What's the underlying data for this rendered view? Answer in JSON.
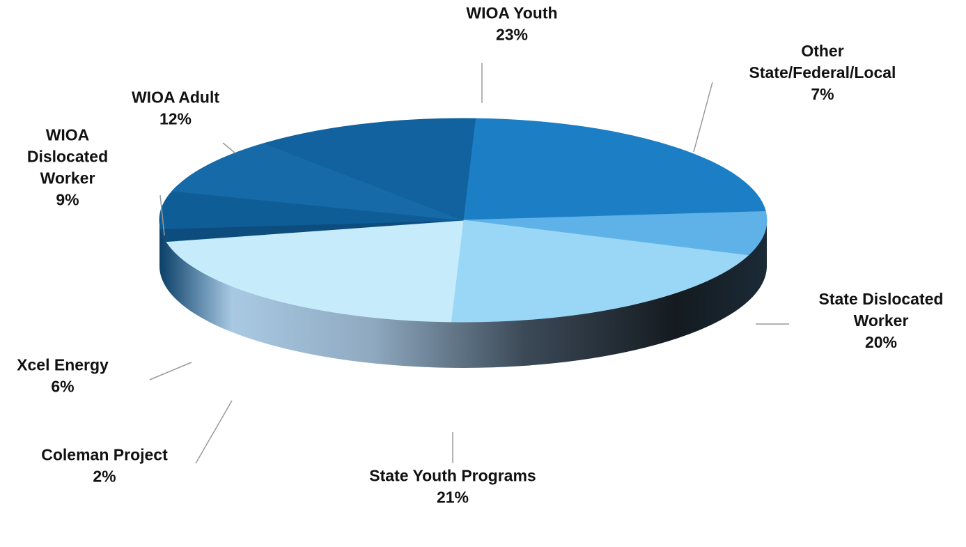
{
  "chart_data": {
    "type": "pie",
    "style": "3d",
    "unit": "%",
    "slices": [
      {
        "name": "WIOA Youth",
        "value": 23,
        "label_lines": [
          "WIOA Youth"
        ],
        "value_label": "23%",
        "color": "#1c7fc6"
      },
      {
        "name": "Other State/Federal/Local",
        "value": 7,
        "label_lines": [
          "Other",
          "State/Federal/Local"
        ],
        "value_label": "7%",
        "color": "#5eb2e8"
      },
      {
        "name": "State Dislocated Worker",
        "value": 20,
        "label_lines": [
          "State Dislocated",
          "Worker"
        ],
        "value_label": "20%",
        "color": "#9ad6f5"
      },
      {
        "name": "State Youth Programs",
        "value": 21,
        "label_lines": [
          "State Youth Programs"
        ],
        "value_label": "21%",
        "color": "#c6ebfb"
      },
      {
        "name": "Coleman Project",
        "value": 2,
        "label_lines": [
          "Coleman Project"
        ],
        "value_label": "2%",
        "color": "#0d4d7d"
      },
      {
        "name": "Xcel Energy",
        "value": 6,
        "label_lines": [
          "Xcel Energy"
        ],
        "value_label": "6%",
        "color": "#0f5d96"
      },
      {
        "name": "WIOA Dislocated Worker",
        "value": 9,
        "label_lines": [
          "WIOA",
          "Dislocated",
          "Worker"
        ],
        "value_label": "9%",
        "color": "#166aa8"
      },
      {
        "name": "WIOA Adult",
        "value": 12,
        "label_lines": [
          "WIOA Adult"
        ],
        "value_label": "12%",
        "color": "#11629f"
      }
    ]
  }
}
